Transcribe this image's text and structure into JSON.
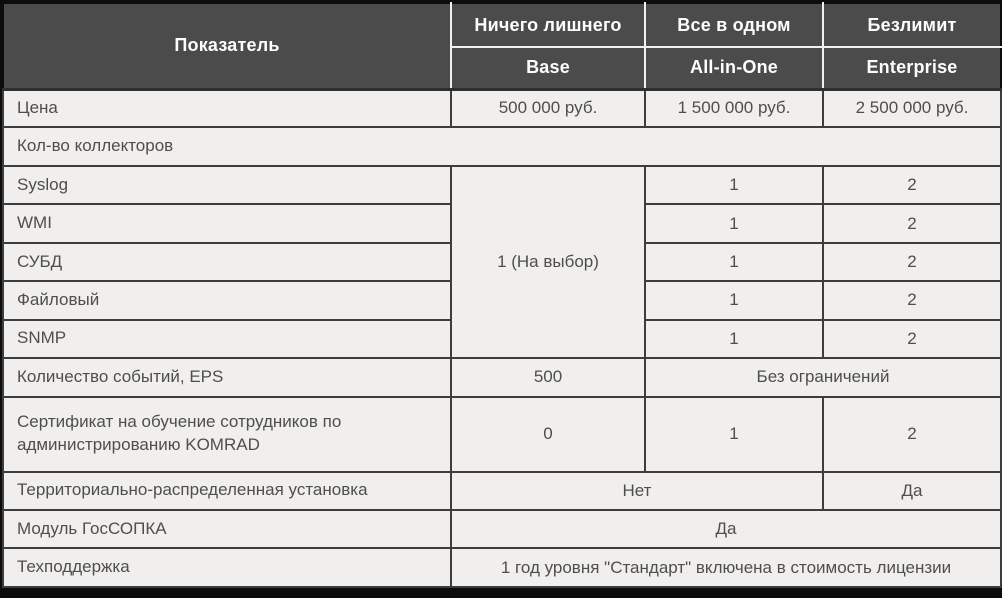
{
  "table": {
    "header": {
      "metric_label": "Показатель",
      "plans": [
        {
          "tagline": "Ничего лишнего",
          "name": "Base"
        },
        {
          "tagline": "Все в одном",
          "name": "All-in-One"
        },
        {
          "tagline": "Безлимит",
          "name": "Enterprise"
        }
      ]
    },
    "rows": {
      "price": {
        "label": "Цена",
        "values": [
          "500 000 руб.",
          "1 500 000 руб.",
          "2 500 000 руб."
        ]
      },
      "collectors_section": {
        "label": "Кол-во коллекторов"
      },
      "collectors": {
        "base_value": "1 (На выбор)",
        "items": [
          {
            "label": "Syslog",
            "allinone": "1",
            "enterprise": "2"
          },
          {
            "label": "WMI",
            "allinone": "1",
            "enterprise": "2"
          },
          {
            "label": "СУБД",
            "allinone": "1",
            "enterprise": "2"
          },
          {
            "label": "Файловый",
            "allinone": "1",
            "enterprise": "2"
          },
          {
            "label": "SNMP",
            "allinone": "1",
            "enterprise": "2"
          }
        ]
      },
      "eps": {
        "label": "Количество событий, EPS",
        "base": "500",
        "allinone_enterprise": "Без ограничений"
      },
      "certificate": {
        "label": "Сертификат на обучение сотрудников по администрированию KOMRAD",
        "values": [
          "0",
          "1",
          "2"
        ]
      },
      "distributed": {
        "label": "Территориально-распределенная установка",
        "base_allinone": "Нет",
        "enterprise": "Да"
      },
      "gossopka": {
        "label": "Модуль ГосСОПКА",
        "all_plans": "Да"
      },
      "support": {
        "label": "Техподдержка",
        "all_plans": "1 год уровня \"Стандарт\" включена в стоимость лицензии"
      }
    }
  },
  "colors": {
    "header_bg": "#4b4b4b",
    "header_text": "#fdfdfd",
    "body_bg": "#f0efed",
    "body_text": "#4e4e4e",
    "border": "#3d3d3d",
    "outer_frame": "#0c0c0c"
  }
}
